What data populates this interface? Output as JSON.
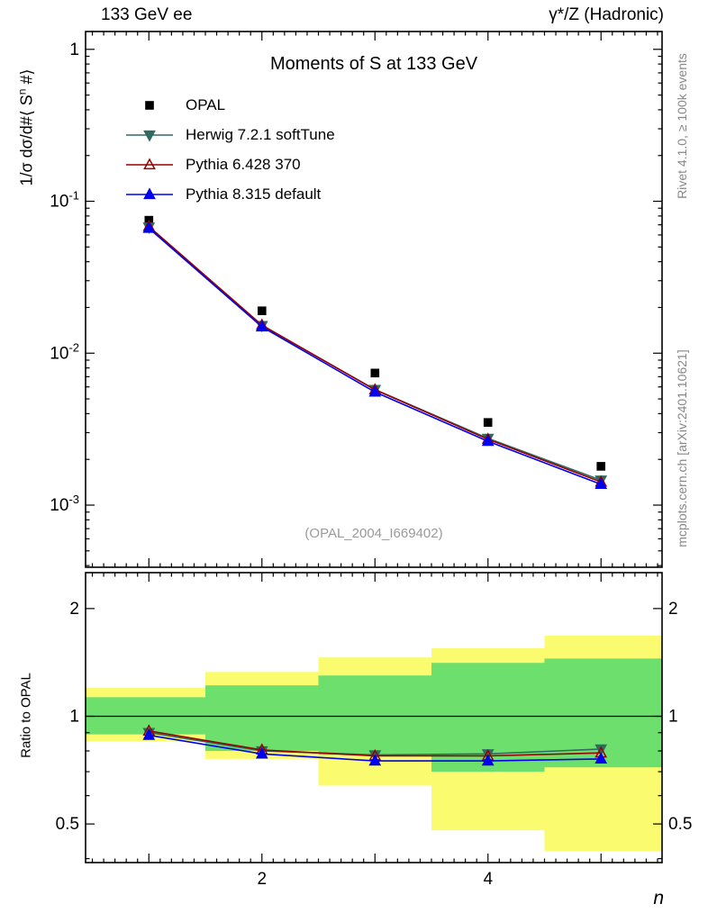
{
  "header": {
    "left": "133 GeV ee",
    "right": "γ*/Z (Hadronic)"
  },
  "side_notes": {
    "top_right": "Rivet 4.1.0, ≥ 100k events",
    "bottom_right": "mcplots.cern.ch [arXiv:2401.10621]"
  },
  "watermark": "(OPAL_2004_I669402)",
  "main_panel": {
    "title": "Moments of S at 133 GeV",
    "ylabel_prefix": "1/σ dσ/d#⟨ S",
    "ylabel_sup": "n",
    "ylabel_suffix": " #⟩"
  },
  "ratio_panel": {
    "ylabel": "Ratio to OPAL"
  },
  "xaxis": {
    "label": "n"
  },
  "chart_data": [
    {
      "id": "main",
      "type": "scatter",
      "title": "Moments of S at 133 GeV",
      "xlabel": "n",
      "ylabel": "1/σ dσ/d#⟨ Sⁿ #⟩",
      "yscale": "log",
      "grid": false,
      "legend_position": "top-left",
      "xlim": [
        0.44,
        5.54
      ],
      "ylim": [
        0.00039,
        1.31
      ],
      "x": [
        1,
        2,
        3,
        4,
        5
      ],
      "yticks": [
        {
          "value": 1,
          "label": "1"
        },
        {
          "value": 0.1,
          "label": "10",
          "exp": "-1"
        },
        {
          "value": 0.01,
          "label": "10",
          "exp": "-2"
        },
        {
          "value": 0.001,
          "label": "10",
          "exp": "-3"
        }
      ],
      "series": [
        {
          "name": "OPAL",
          "color": "#000000",
          "marker": "square",
          "fill": true,
          "line": false,
          "values": [
            0.075,
            0.019,
            0.0074,
            0.0035,
            0.0018
          ]
        },
        {
          "name": "Herwig 7.2.1 softTune",
          "color": "#2f6b61",
          "marker": "triangle-down",
          "fill": true,
          "line": true,
          "values": [
            0.0675,
            0.0152,
            0.00577,
            0.00275,
            0.00146
          ]
        },
        {
          "name": "Pythia 6.428 370",
          "color": "#990000",
          "marker": "triangle-up",
          "fill": false,
          "line": true,
          "values": [
            0.0683,
            0.0153,
            0.00574,
            0.00271,
            0.00142
          ]
        },
        {
          "name": "Pythia 8.315 default",
          "color": "#0000f0",
          "marker": "triangle-up",
          "fill": true,
          "line": true,
          "values": [
            0.0664,
            0.0149,
            0.00555,
            0.00263,
            0.00137
          ]
        }
      ]
    },
    {
      "id": "ratio",
      "type": "scatter",
      "ylabel": "Ratio to OPAL",
      "yscale": "log",
      "xlim": [
        0.44,
        5.54
      ],
      "ylim": [
        0.39,
        2.52
      ],
      "x": [
        1,
        2,
        3,
        4,
        5
      ],
      "yticks": [
        {
          "value": 0.5,
          "label": "0.5"
        },
        {
          "value": 1,
          "label": "1"
        },
        {
          "value": 2,
          "label": "2"
        }
      ],
      "xticks": [
        {
          "value": 2,
          "label": "2"
        },
        {
          "value": 4,
          "label": "4"
        }
      ],
      "reference_line": 1,
      "band_colors": {
        "outer": "#fbfb6f",
        "inner": "#6cdf6c"
      },
      "bands": [
        {
          "x0": 0.44,
          "x1": 1.5,
          "outer": [
            0.85,
            1.2
          ],
          "inner": [
            0.89,
            1.13
          ]
        },
        {
          "x0": 1.5,
          "x1": 2.5,
          "outer": [
            0.76,
            1.33
          ],
          "inner": [
            0.8,
            1.22
          ]
        },
        {
          "x0": 2.5,
          "x1": 3.5,
          "outer": [
            0.64,
            1.46
          ],
          "inner": [
            0.78,
            1.3
          ]
        },
        {
          "x0": 3.5,
          "x1": 4.5,
          "outer": [
            0.48,
            1.55
          ],
          "inner": [
            0.7,
            1.41
          ]
        },
        {
          "x0": 4.5,
          "x1": 5.54,
          "outer": [
            0.42,
            1.68
          ],
          "inner": [
            0.72,
            1.45
          ]
        }
      ],
      "series": [
        {
          "name": "Herwig 7.2.1 softTune",
          "color": "#2f6b61",
          "marker": "triangle-down",
          "fill": true,
          "line": true,
          "values": [
            0.9,
            0.8,
            0.78,
            0.785,
            0.81
          ]
        },
        {
          "name": "Pythia 6.428 370",
          "color": "#990000",
          "marker": "triangle-up",
          "fill": false,
          "line": true,
          "values": [
            0.91,
            0.805,
            0.775,
            0.775,
            0.79
          ]
        },
        {
          "name": "Pythia 8.315 default",
          "color": "#0000f0",
          "marker": "triangle-up",
          "fill": true,
          "line": true,
          "values": [
            0.885,
            0.785,
            0.75,
            0.75,
            0.76
          ]
        }
      ]
    }
  ]
}
